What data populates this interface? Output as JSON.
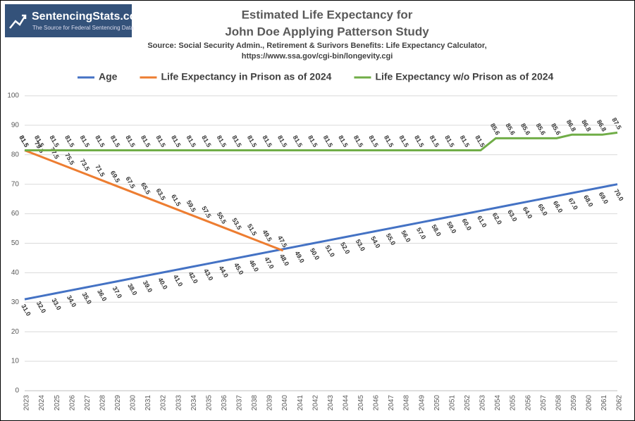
{
  "logo": {
    "name": "SentencingStats.com",
    "tagline": "The Source for Federal Sentencing Data"
  },
  "chart_data": {
    "type": "line",
    "title": [
      "Estimated Life Expectancy for",
      "John Doe Applying Patterson Study"
    ],
    "subtitle": [
      "Source: Social Security Admin., Retirement & Surivors Benefits: Life Expectancy Calculator,",
      "https://www.ssa.gov/cgi-bin/longevity.cgi"
    ],
    "categories": [
      "2023",
      "2024",
      "2025",
      "2026",
      "2027",
      "2028",
      "2029",
      "2030",
      "2031",
      "2032",
      "2033",
      "2034",
      "2035",
      "2036",
      "2037",
      "2038",
      "2039",
      "2040",
      "2041",
      "2042",
      "2043",
      "2044",
      "2045",
      "2046",
      "2047",
      "2048",
      "2049",
      "2050",
      "2051",
      "2052",
      "2053",
      "2054",
      "2055",
      "2056",
      "2057",
      "2058",
      "2059",
      "2060",
      "2061",
      "2062"
    ],
    "ylim": [
      0,
      100
    ],
    "yticks": [
      0,
      10,
      20,
      30,
      40,
      50,
      60,
      70,
      80,
      90,
      100
    ],
    "grid": true,
    "legend": "top",
    "series": [
      {
        "name": "Age",
        "color": "#4472c4",
        "values": [
          31,
          32,
          33,
          34,
          35,
          36,
          37,
          38,
          39,
          40,
          41,
          42,
          43,
          44,
          45,
          46,
          47,
          48,
          49,
          50,
          51,
          52,
          53,
          54,
          55,
          56,
          57,
          58,
          59,
          60,
          61,
          62,
          63,
          64,
          65,
          66,
          67,
          68,
          69,
          70
        ],
        "value_labels": [
          "31.0",
          "32.0",
          "33.0",
          "34.0",
          "35.0",
          "36.0",
          "37.0",
          "38.0",
          "39.0",
          "40.0",
          "41.0",
          "42.0",
          "43.0",
          "44.0",
          "45.0",
          "46.0",
          "47.0",
          "48.0",
          "49.0",
          "50.0",
          "51.0",
          "52.0",
          "53.0",
          "54.0",
          "55.0",
          "56.0",
          "57.0",
          "58.0",
          "59.0",
          "60.0",
          "61.0",
          "62.0",
          "63.0",
          "64.0",
          "65.0",
          "66.0",
          "67.0",
          "68.0",
          "69.0",
          "70.0"
        ]
      },
      {
        "name": "Life Expectancy in Prison as of 2024",
        "color": "#ed7d31",
        "values": [
          81.5,
          79.5,
          77.5,
          75.5,
          73.5,
          71.5,
          69.5,
          67.5,
          65.5,
          63.5,
          61.5,
          59.5,
          57.5,
          55.5,
          53.5,
          51.5,
          49.5,
          47.5,
          null,
          null,
          null,
          null,
          null,
          null,
          null,
          null,
          null,
          null,
          null,
          null,
          null,
          null,
          null,
          null,
          null,
          null,
          null,
          null,
          null,
          null
        ]
      },
      {
        "name": "Life Expectancy w/o Prison as of 2024",
        "color": "#70ad47",
        "values": [
          81.5,
          81.5,
          81.5,
          81.5,
          81.5,
          81.5,
          81.5,
          81.5,
          81.5,
          81.5,
          81.5,
          81.5,
          81.5,
          81.5,
          81.5,
          81.5,
          81.5,
          81.5,
          81.5,
          81.5,
          81.5,
          81.5,
          81.5,
          81.5,
          81.5,
          81.5,
          81.5,
          81.5,
          81.5,
          81.5,
          81.5,
          85.6,
          85.6,
          85.6,
          85.6,
          85.6,
          86.8,
          86.8,
          86.8,
          87.5
        ]
      }
    ]
  }
}
